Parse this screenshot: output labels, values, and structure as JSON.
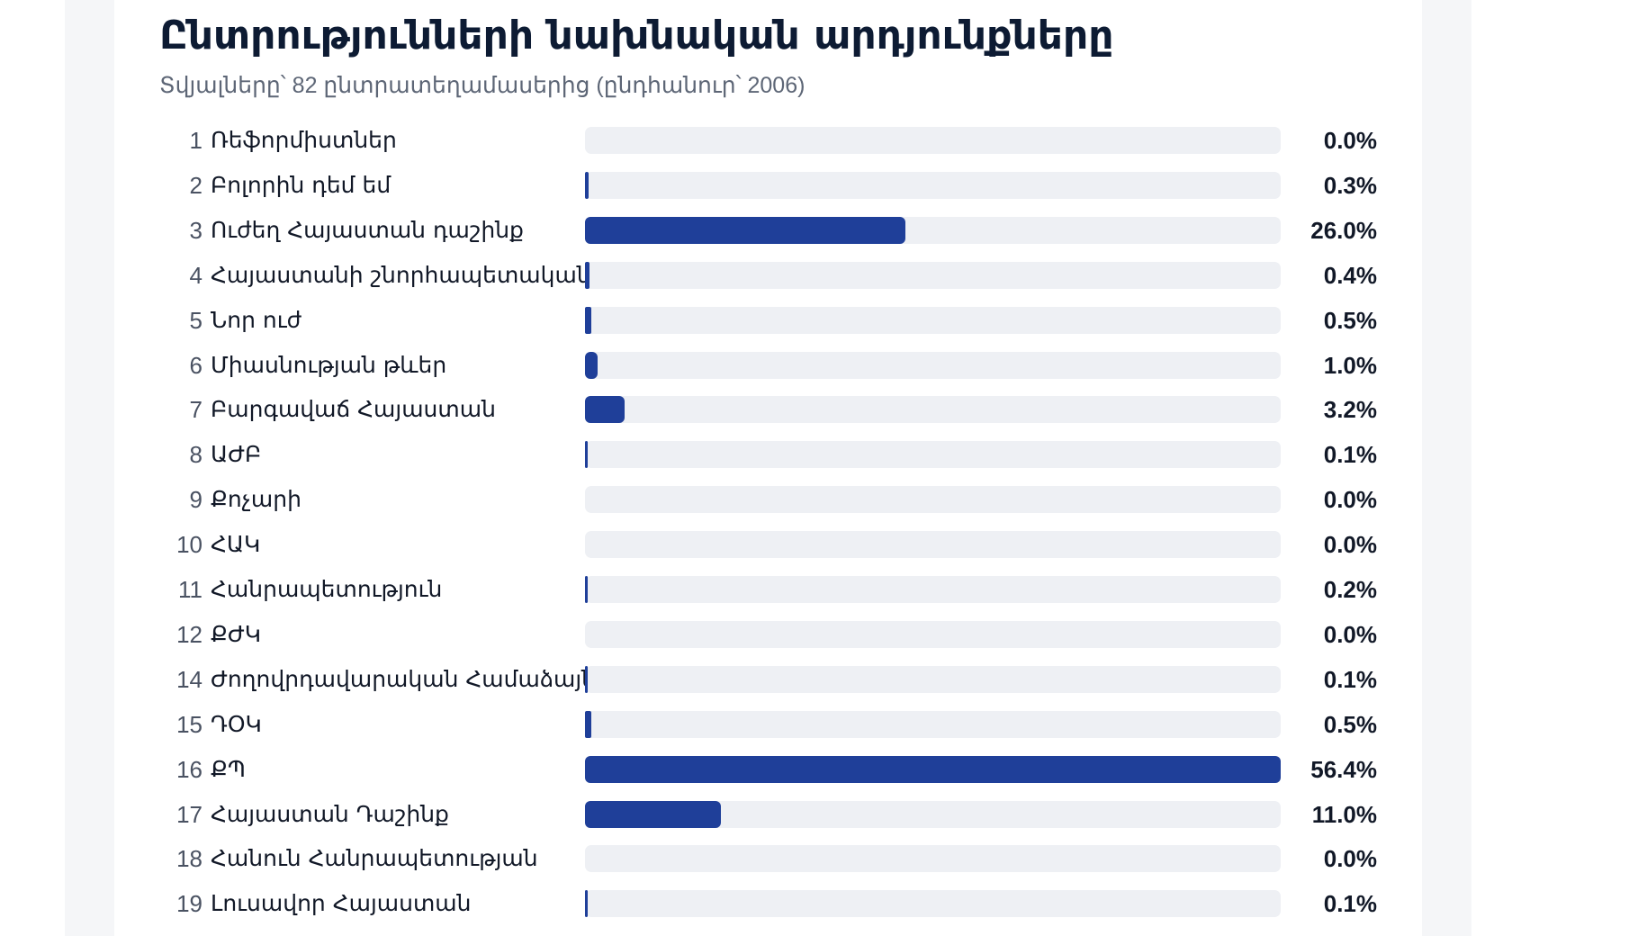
{
  "header": {
    "title": "Ընտրությունների նախնական արդյունքները",
    "subtitle": "Տվյալները՝ 82 ընտրատեղամասերից (ընդհանուր՝ 2006)"
  },
  "colors": {
    "bar_fill": "#1f3f99",
    "bar_track": "#eef0f4"
  },
  "chart_data": {
    "type": "bar",
    "orientation": "horizontal",
    "title": "Ընտրությունների նախնական արդյունքները",
    "subtitle": "Տվյալները՝ 82 ընտրատեղամասերից (ընդհանուր՝ 2006)",
    "xlim": [
      0,
      56.4
    ],
    "grid": false,
    "rows": [
      {
        "num": "1",
        "label": "Ռեֆորմիստներ",
        "value": 0.0,
        "display": "0.0%"
      },
      {
        "num": "2",
        "label": "Բոլորին դեմ եմ",
        "value": 0.3,
        "display": "0.3%"
      },
      {
        "num": "3",
        "label": "Ուժեղ Հայաստան դաշինք",
        "value": 26.0,
        "display": "26.0%"
      },
      {
        "num": "4",
        "label": "Հայաստանի շնորհապետական",
        "value": 0.4,
        "display": "0.4%"
      },
      {
        "num": "5",
        "label": "Նոր ուժ",
        "value": 0.5,
        "display": "0.5%"
      },
      {
        "num": "6",
        "label": "Միասնության թևեր",
        "value": 1.0,
        "display": "1.0%"
      },
      {
        "num": "7",
        "label": "Բարգավաճ Հայաստան",
        "value": 3.2,
        "display": "3.2%"
      },
      {
        "num": "8",
        "label": "ԱԺԲ",
        "value": 0.1,
        "display": "0.1%"
      },
      {
        "num": "9",
        "label": "Քոչարի",
        "value": 0.0,
        "display": "0.0%"
      },
      {
        "num": "10",
        "label": "ՀԱԿ",
        "value": 0.0,
        "display": "0.0%"
      },
      {
        "num": "11",
        "label": "Հանրապետություն",
        "value": 0.2,
        "display": "0.2%"
      },
      {
        "num": "12",
        "label": "ՔԺԿ",
        "value": 0.0,
        "display": "0.0%"
      },
      {
        "num": "14",
        "label": "Ժողովրդավարական Համաձայնություն",
        "value": 0.1,
        "display": "0.1%"
      },
      {
        "num": "15",
        "label": "ԴՕԿ",
        "value": 0.5,
        "display": "0.5%"
      },
      {
        "num": "16",
        "label": "ՔՊ",
        "value": 56.4,
        "display": "56.4%"
      },
      {
        "num": "17",
        "label": "Հայաստան Դաշինք",
        "value": 11.0,
        "display": "11.0%"
      },
      {
        "num": "18",
        "label": "Հանուն Հանրապետության",
        "value": 0.0,
        "display": "0.0%"
      },
      {
        "num": "19",
        "label": "Լուսավոր Հայաստան",
        "value": 0.1,
        "display": "0.1%"
      }
    ]
  }
}
